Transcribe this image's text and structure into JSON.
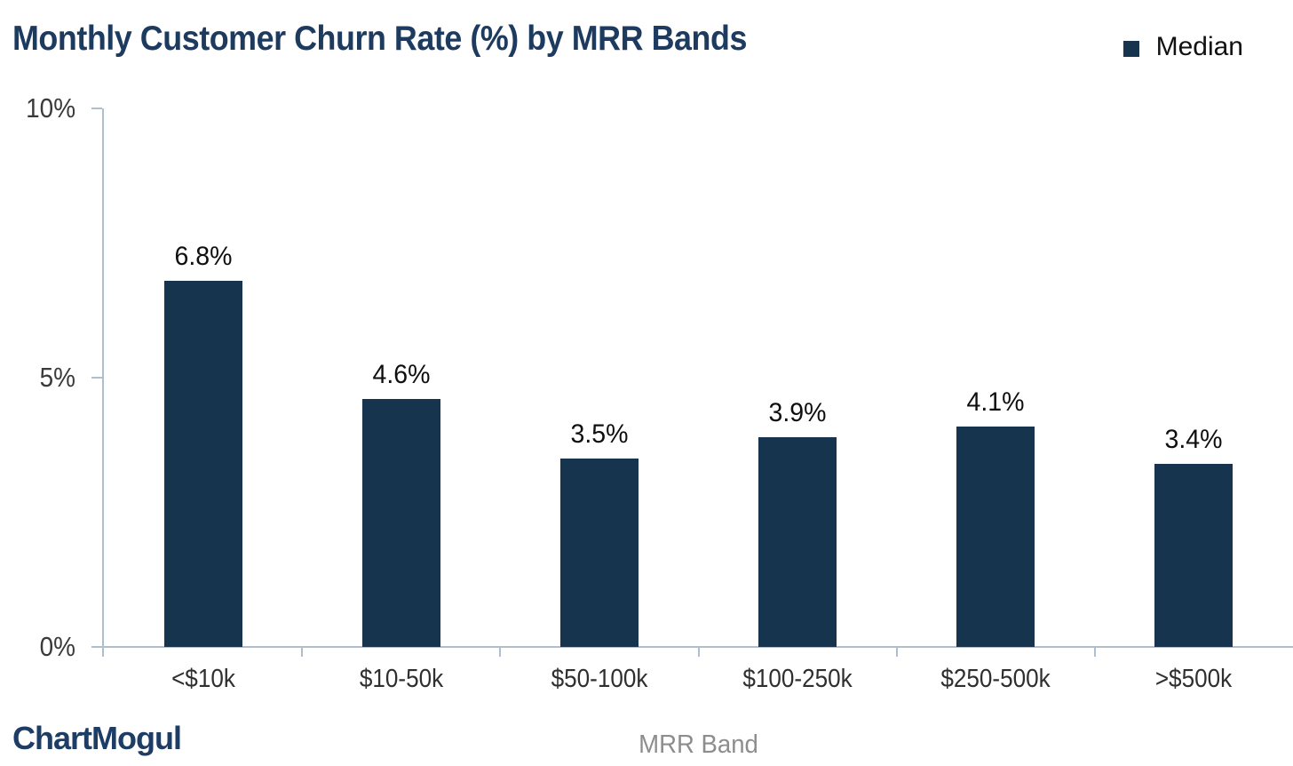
{
  "header": {
    "title": "Monthly Customer Churn Rate (%) by MRR Bands",
    "legend": {
      "label": "Median",
      "swatch_color": "#16344e",
      "position": "top-right"
    }
  },
  "chart_data": {
    "type": "bar",
    "title": "Monthly Customer Churn Rate (%) by MRR Bands",
    "categories": [
      "<$10k",
      "$10-50k",
      "$50-100k",
      "$100-250k",
      "$250-500k",
      ">$500k"
    ],
    "series": [
      {
        "name": "Median",
        "values": [
          6.8,
          4.6,
          3.5,
          3.9,
          4.1,
          3.4
        ]
      }
    ],
    "value_labels": [
      "6.8%",
      "4.6%",
      "3.5%",
      "3.9%",
      "4.1%",
      "3.4%"
    ],
    "xlabel": "MRR Band",
    "ylabel": "",
    "ylim": [
      0,
      10
    ],
    "yticks": [
      0,
      5,
      10
    ],
    "ytick_labels": [
      "0%",
      "5%",
      "10%"
    ],
    "grid": false,
    "legend_position": "top-right",
    "bar_color": "#16344e",
    "axis_color": "#b0bfcd"
  },
  "footer": {
    "logo": "ChartMogul",
    "xlabel": "MRR Band"
  },
  "colors": {
    "title": "#1d3a5f",
    "bar": "#16344e",
    "axis_line": "#b0bfcd",
    "y_tick_label": "#3a3a3a",
    "category_label": "#2f2f2f",
    "value_label": "#0f0f0f",
    "x_axis_title": "#8d8d8d",
    "logo": "#1d3c66"
  }
}
